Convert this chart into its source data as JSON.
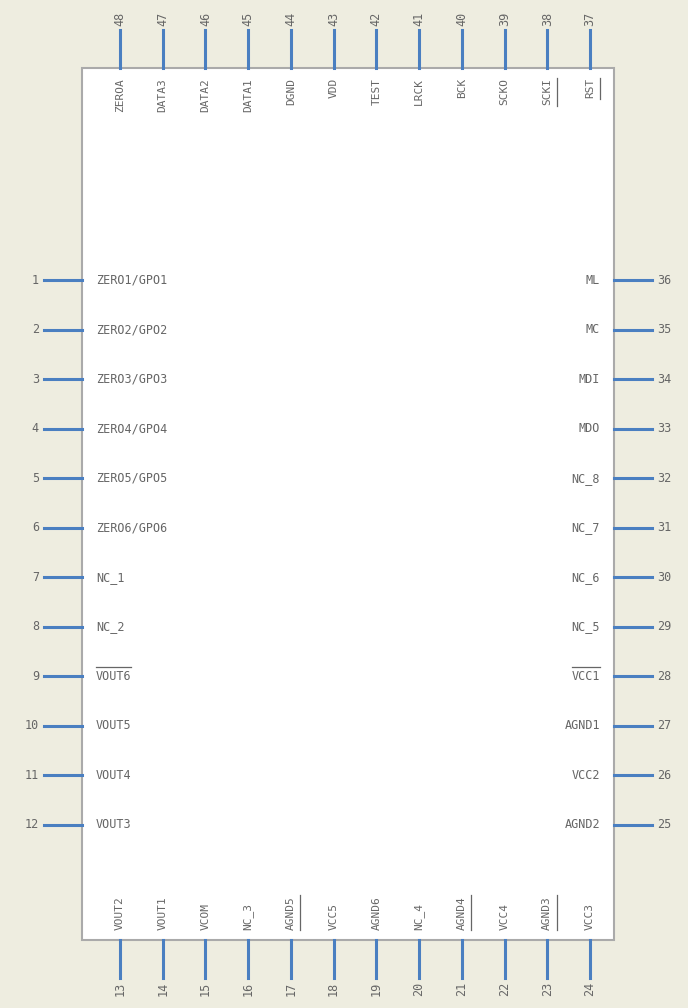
{
  "bg_color": "#eeede0",
  "pin_color": "#4a7fc1",
  "body_edge_color": "#aaaaaa",
  "body_fill_color": "#ffffff",
  "text_color": "#666666",
  "fig_w": 6.88,
  "fig_h": 10.08,
  "dpi": 100,
  "left_pins": [
    {
      "num": 1,
      "label": "ZERO1/GPO1",
      "ol": false
    },
    {
      "num": 2,
      "label": "ZERO2/GPO2",
      "ol": false
    },
    {
      "num": 3,
      "label": "ZERO3/GPO3",
      "ol": false
    },
    {
      "num": 4,
      "label": "ZERO4/GPO4",
      "ol": false
    },
    {
      "num": 5,
      "label": "ZERO5/GPO5",
      "ol": false
    },
    {
      "num": 6,
      "label": "ZERO6/GPO6",
      "ol": false
    },
    {
      "num": 7,
      "label": "NC_1",
      "ol": false
    },
    {
      "num": 8,
      "label": "NC_2",
      "ol": false
    },
    {
      "num": 9,
      "label": "VOUT6",
      "ol": true
    },
    {
      "num": 10,
      "label": "VOUT5",
      "ol": false
    },
    {
      "num": 11,
      "label": "VOUT4",
      "ol": false
    },
    {
      "num": 12,
      "label": "VOUT3",
      "ol": false
    }
  ],
  "right_pins": [
    {
      "num": 36,
      "label": "ML",
      "ol": false
    },
    {
      "num": 35,
      "label": "MC",
      "ol": false
    },
    {
      "num": 34,
      "label": "MDI",
      "ol": false
    },
    {
      "num": 33,
      "label": "MDO",
      "ol": false
    },
    {
      "num": 32,
      "label": "NC_8",
      "ol": false
    },
    {
      "num": 31,
      "label": "NC_7",
      "ol": false
    },
    {
      "num": 30,
      "label": "NC_6",
      "ol": false
    },
    {
      "num": 29,
      "label": "NC_5",
      "ol": false
    },
    {
      "num": 28,
      "label": "VCC1",
      "ol": true
    },
    {
      "num": 27,
      "label": "AGND1",
      "ol": false
    },
    {
      "num": 26,
      "label": "VCC2",
      "ol": false
    },
    {
      "num": 25,
      "label": "AGND2",
      "ol": false
    }
  ],
  "top_pins": [
    {
      "num": 48,
      "label": "ZEROA",
      "ol": false
    },
    {
      "num": 47,
      "label": "DATA3",
      "ol": false
    },
    {
      "num": 46,
      "label": "DATA2",
      "ol": false
    },
    {
      "num": 45,
      "label": "DATA1",
      "ol": false
    },
    {
      "num": 44,
      "label": "DGND",
      "ol": false
    },
    {
      "num": 43,
      "label": "VDD",
      "ol": false
    },
    {
      "num": 42,
      "label": "TEST",
      "ol": false
    },
    {
      "num": 41,
      "label": "LRCK",
      "ol": false
    },
    {
      "num": 40,
      "label": "BCK",
      "ol": false
    },
    {
      "num": 39,
      "label": "SCKO",
      "ol": false
    },
    {
      "num": 38,
      "label": "SCKI",
      "ol": true
    },
    {
      "num": 37,
      "label": "RST",
      "ol": true
    }
  ],
  "bottom_pins": [
    {
      "num": 13,
      "label": "VOUT2",
      "ol": false
    },
    {
      "num": 14,
      "label": "VOUT1",
      "ol": false
    },
    {
      "num": 15,
      "label": "VCOM",
      "ol": false
    },
    {
      "num": 16,
      "label": "NC_3",
      "ol": false
    },
    {
      "num": 17,
      "label": "AGND5",
      "ol": true
    },
    {
      "num": 18,
      "label": "VCC5",
      "ol": false
    },
    {
      "num": 19,
      "label": "AGND6",
      "ol": false
    },
    {
      "num": 20,
      "label": "NC_4",
      "ol": false
    },
    {
      "num": 21,
      "label": "AGND4",
      "ol": true
    },
    {
      "num": 22,
      "label": "VCC4",
      "ol": false
    },
    {
      "num": 23,
      "label": "AGND3",
      "ol": true
    },
    {
      "num": 24,
      "label": "VCC3",
      "ol": false
    }
  ]
}
